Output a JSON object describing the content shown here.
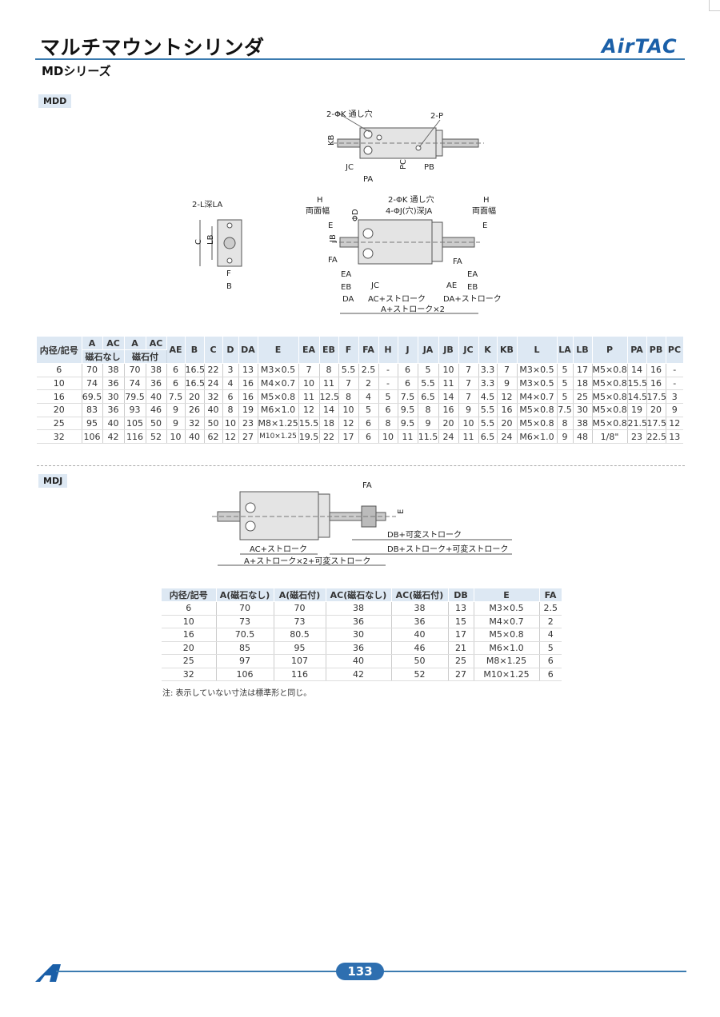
{
  "header": {
    "title": "マルチマウントシリンダ",
    "series": "MDシリーズ",
    "brand": "AirTAC"
  },
  "sections": {
    "mdd": "MDD",
    "mdj": "MDJ"
  },
  "diagram_mdd_top": {
    "k_hole": "2-ΦK 通し穴",
    "p": "2-P",
    "kb": "KB",
    "jc": "JC",
    "pa": "PA",
    "pc": "PC",
    "pb": "PB"
  },
  "diagram_mdd_end": {
    "l": "2-L深LA",
    "c": "C",
    "lb": "LB",
    "f": "F",
    "b": "B"
  },
  "diagram_mdd_side": {
    "h_left": "H",
    "width_left": "両面幅",
    "k_hole": "2-ΦK 通し穴",
    "j_hole": "4-ΦJ(穴)深JA",
    "h_right": "H",
    "width_right": "両面幅",
    "phi_d": "ΦD",
    "e_left": "E",
    "e_right": "E",
    "jb": "JB",
    "fa_left": "FA",
    "fa_right": "FA",
    "ea_left": "EA",
    "ea_right": "EA",
    "eb_left": "EB",
    "eb_right": "EB",
    "jc": "JC",
    "ae": "AE",
    "da": "DA",
    "ac_stroke": "AC+ストローク",
    "da_stroke": "DA+ストローク",
    "a_stroke": "A+ストローク×2"
  },
  "diagram_mdj": {
    "fa": "FA",
    "e": "E",
    "db_var": "DB+可変ストローク",
    "db_stroke_var": "DB+ストローク+可変ストローク",
    "ac_stroke": "AC+ストローク",
    "a_stroke_var": "A+ストローク×2+可変ストローク"
  },
  "table_mdd": {
    "header_top": [
      "内径/記号",
      "A",
      "AC",
      "A",
      "AC",
      "AE",
      "B",
      "C",
      "D",
      "DA",
      "E",
      "EA",
      "EB",
      "F",
      "FA",
      "H",
      "J",
      "JA",
      "JB",
      "JC",
      "K",
      "KB",
      "L",
      "LA",
      "LB",
      "P",
      "PA",
      "PB",
      "PC"
    ],
    "header_sub": [
      "磁石なし",
      "磁石付"
    ],
    "rows": [
      [
        "6",
        "70",
        "38",
        "70",
        "38",
        "6",
        "16.5",
        "22",
        "3",
        "13",
        "M3×0.5",
        "7",
        "8",
        "5.5",
        "2.5",
        "-",
        "6",
        "5",
        "10",
        "7",
        "3.3",
        "7",
        "M3×0.5",
        "5",
        "17",
        "M5×0.8",
        "14",
        "16",
        "-"
      ],
      [
        "10",
        "74",
        "36",
        "74",
        "36",
        "6",
        "16.5",
        "24",
        "4",
        "16",
        "M4×0.7",
        "10",
        "11",
        "7",
        "2",
        "-",
        "6",
        "5.5",
        "11",
        "7",
        "3.3",
        "9",
        "M3×0.5",
        "5",
        "18",
        "M5×0.8",
        "15.5",
        "16",
        "-"
      ],
      [
        "16",
        "69.5",
        "30",
        "79.5",
        "40",
        "7.5",
        "20",
        "32",
        "6",
        "16",
        "M5×0.8",
        "11",
        "12.5",
        "8",
        "4",
        "5",
        "7.5",
        "6.5",
        "14",
        "7",
        "4.5",
        "12",
        "M4×0.7",
        "5",
        "25",
        "M5×0.8",
        "14.5",
        "17.5",
        "3"
      ],
      [
        "20",
        "83",
        "36",
        "93",
        "46",
        "9",
        "26",
        "40",
        "8",
        "19",
        "M6×1.0",
        "12",
        "14",
        "10",
        "5",
        "6",
        "9.5",
        "8",
        "16",
        "9",
        "5.5",
        "16",
        "M5×0.8",
        "7.5",
        "30",
        "M5×0.8",
        "19",
        "20",
        "9"
      ],
      [
        "25",
        "95",
        "40",
        "105",
        "50",
        "9",
        "32",
        "50",
        "10",
        "23",
        "M8×1.25",
        "15.5",
        "18",
        "12",
        "6",
        "8",
        "9.5",
        "9",
        "20",
        "10",
        "5.5",
        "20",
        "M5×0.8",
        "8",
        "38",
        "M5×0.8",
        "21.5",
        "17.5",
        "12"
      ],
      [
        "32",
        "106",
        "42",
        "116",
        "52",
        "10",
        "40",
        "62",
        "12",
        "27",
        "M10×1.25",
        "19.5",
        "22",
        "17",
        "6",
        "10",
        "11",
        "11.5",
        "24",
        "11",
        "6.5",
        "24",
        "M6×1.0",
        "9",
        "48",
        "1/8\"",
        "23",
        "22.5",
        "13"
      ]
    ]
  },
  "table_mdj": {
    "header": [
      "内径/記号",
      "A(磁石なし)",
      "A(磁石付)",
      "AC(磁石なし)",
      "AC(磁石付)",
      "DB",
      "E",
      "FA"
    ],
    "rows": [
      [
        "6",
        "70",
        "70",
        "38",
        "38",
        "13",
        "M3×0.5",
        "2.5"
      ],
      [
        "10",
        "73",
        "73",
        "36",
        "36",
        "15",
        "M4×0.7",
        "2"
      ],
      [
        "16",
        "70.5",
        "80.5",
        "30",
        "40",
        "17",
        "M5×0.8",
        "4"
      ],
      [
        "20",
        "85",
        "95",
        "36",
        "46",
        "21",
        "M6×1.0",
        "5"
      ],
      [
        "25",
        "97",
        "107",
        "40",
        "50",
        "25",
        "M8×1.25",
        "6"
      ],
      [
        "32",
        "106",
        "116",
        "42",
        "52",
        "27",
        "M10×1.25",
        "6"
      ]
    ]
  },
  "note": "注: 表示していない寸法は標準形と同じ。",
  "footer": {
    "page": "133"
  },
  "colors": {
    "accent": "#3b7bb0",
    "header_bg": "#dde8f3",
    "brand": "#1a5fa8"
  }
}
